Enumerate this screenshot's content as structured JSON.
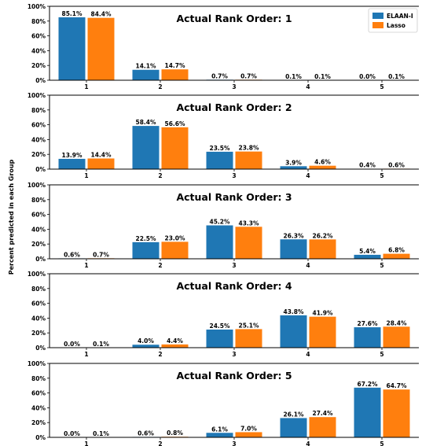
{
  "chart_data": {
    "type": "bar",
    "ylabel": "Percent predicted in each Group",
    "legend": {
      "placement": "top-right of first panel",
      "entries": [
        {
          "name": "ELAAN-I",
          "color": "#1f77b4"
        },
        {
          "name": "Lasso",
          "color": "#ff7f0e"
        }
      ]
    },
    "categories": [
      "1",
      "2",
      "3",
      "4",
      "5"
    ],
    "ylim": [
      0,
      100
    ],
    "yticks": [
      "0%",
      "20%",
      "40%",
      "60%",
      "80%",
      "100%"
    ],
    "panels": [
      {
        "title": "Actual Rank Order: 1",
        "series": [
          {
            "name": "ELAAN-I",
            "values": [
              85.1,
              14.1,
              0.7,
              0.1,
              0.0
            ],
            "labels": [
              "85.1%",
              "14.1%",
              "0.7%",
              "0.1%",
              "0.0%"
            ]
          },
          {
            "name": "Lasso",
            "values": [
              84.4,
              14.7,
              0.7,
              0.1,
              0.1
            ],
            "labels": [
              "84.4%",
              "14.7%",
              "0.7%",
              "0.1%",
              "0.1%"
            ]
          }
        ]
      },
      {
        "title": "Actual Rank Order: 2",
        "series": [
          {
            "name": "ELAAN-I",
            "values": [
              13.9,
              58.4,
              23.5,
              3.9,
              0.4
            ],
            "labels": [
              "13.9%",
              "58.4%",
              "23.5%",
              "3.9%",
              "0.4%"
            ]
          },
          {
            "name": "Lasso",
            "values": [
              14.4,
              56.6,
              23.8,
              4.6,
              0.6
            ],
            "labels": [
              "14.4%",
              "56.6%",
              "23.8%",
              "4.6%",
              "0.6%"
            ]
          }
        ]
      },
      {
        "title": "Actual Rank Order: 3",
        "series": [
          {
            "name": "ELAAN-I",
            "values": [
              0.6,
              22.5,
              45.2,
              26.3,
              5.4
            ],
            "labels": [
              "0.6%",
              "22.5%",
              "45.2%",
              "26.3%",
              "5.4%"
            ]
          },
          {
            "name": "Lasso",
            "values": [
              0.7,
              23.0,
              43.3,
              26.2,
              6.8
            ],
            "labels": [
              "0.7%",
              "23.0%",
              "43.3%",
              "26.2%",
              "6.8%"
            ]
          }
        ]
      },
      {
        "title": "Actual Rank Order: 4",
        "series": [
          {
            "name": "ELAAN-I",
            "values": [
              0.0,
              4.0,
              24.5,
              43.8,
              27.6
            ],
            "labels": [
              "0.0%",
              "4.0%",
              "24.5%",
              "43.8%",
              "27.6%"
            ]
          },
          {
            "name": "Lasso",
            "values": [
              0.1,
              4.4,
              25.1,
              41.9,
              28.4
            ],
            "labels": [
              "0.1%",
              "4.4%",
              "25.1%",
              "41.9%",
              "28.4%"
            ]
          }
        ]
      },
      {
        "title": "Actual Rank Order: 5",
        "series": [
          {
            "name": "ELAAN-I",
            "values": [
              0.0,
              0.6,
              6.1,
              26.1,
              67.2
            ],
            "labels": [
              "0.0%",
              "0.6%",
              "6.1%",
              "26.1%",
              "67.2%"
            ]
          },
          {
            "name": "Lasso",
            "values": [
              0.1,
              0.8,
              7.0,
              27.4,
              64.7
            ],
            "labels": [
              "0.1%",
              "0.8%",
              "7.0%",
              "27.4%",
              "64.7%"
            ]
          }
        ]
      }
    ]
  }
}
